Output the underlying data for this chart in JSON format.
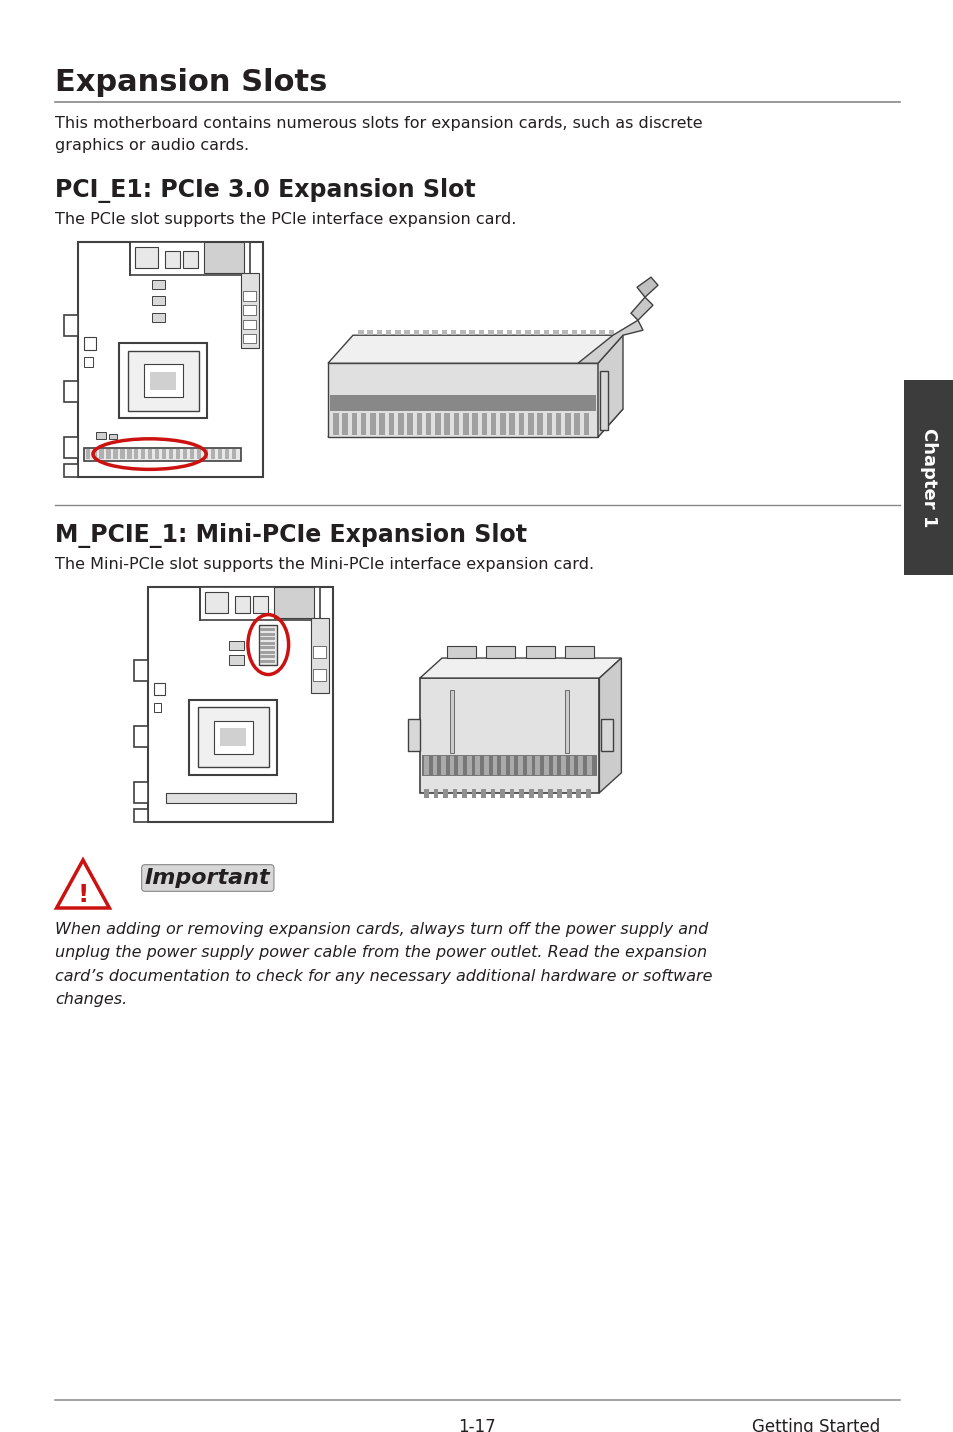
{
  "title": "Expansion Slots",
  "intro_text": "This motherboard contains numerous slots for expansion cards, such as discrete\ngraphics or audio cards.",
  "section1_title": "PCI_E1: PCIe 3.0 Expansion Slot",
  "section1_body": "The PCIe slot supports the PCIe interface expansion card.",
  "section2_title": "M_PCIE_1: Mini-PCIe Expansion Slot",
  "section2_body": "The Mini-PCIe slot supports the Mini-PCIe interface expansion card.",
  "important_label": "Important",
  "important_text": "When adding or removing expansion cards, always turn off the power supply and\nunplug the power supply power cable from the power outlet. Read the expansion\ncard’s documentation to check for any necessary additional hardware or software\nchanges.",
  "footer_left": "1-17",
  "footer_right": "Getting Started",
  "chapter_label": "Chapter 1",
  "bg_color": "#ffffff",
  "text_color": "#231f20",
  "gray_line_color": "#888888",
  "section_title_color": "#231f20",
  "chapter_tab_color": "#3c3c3c",
  "line_color": "#404040"
}
